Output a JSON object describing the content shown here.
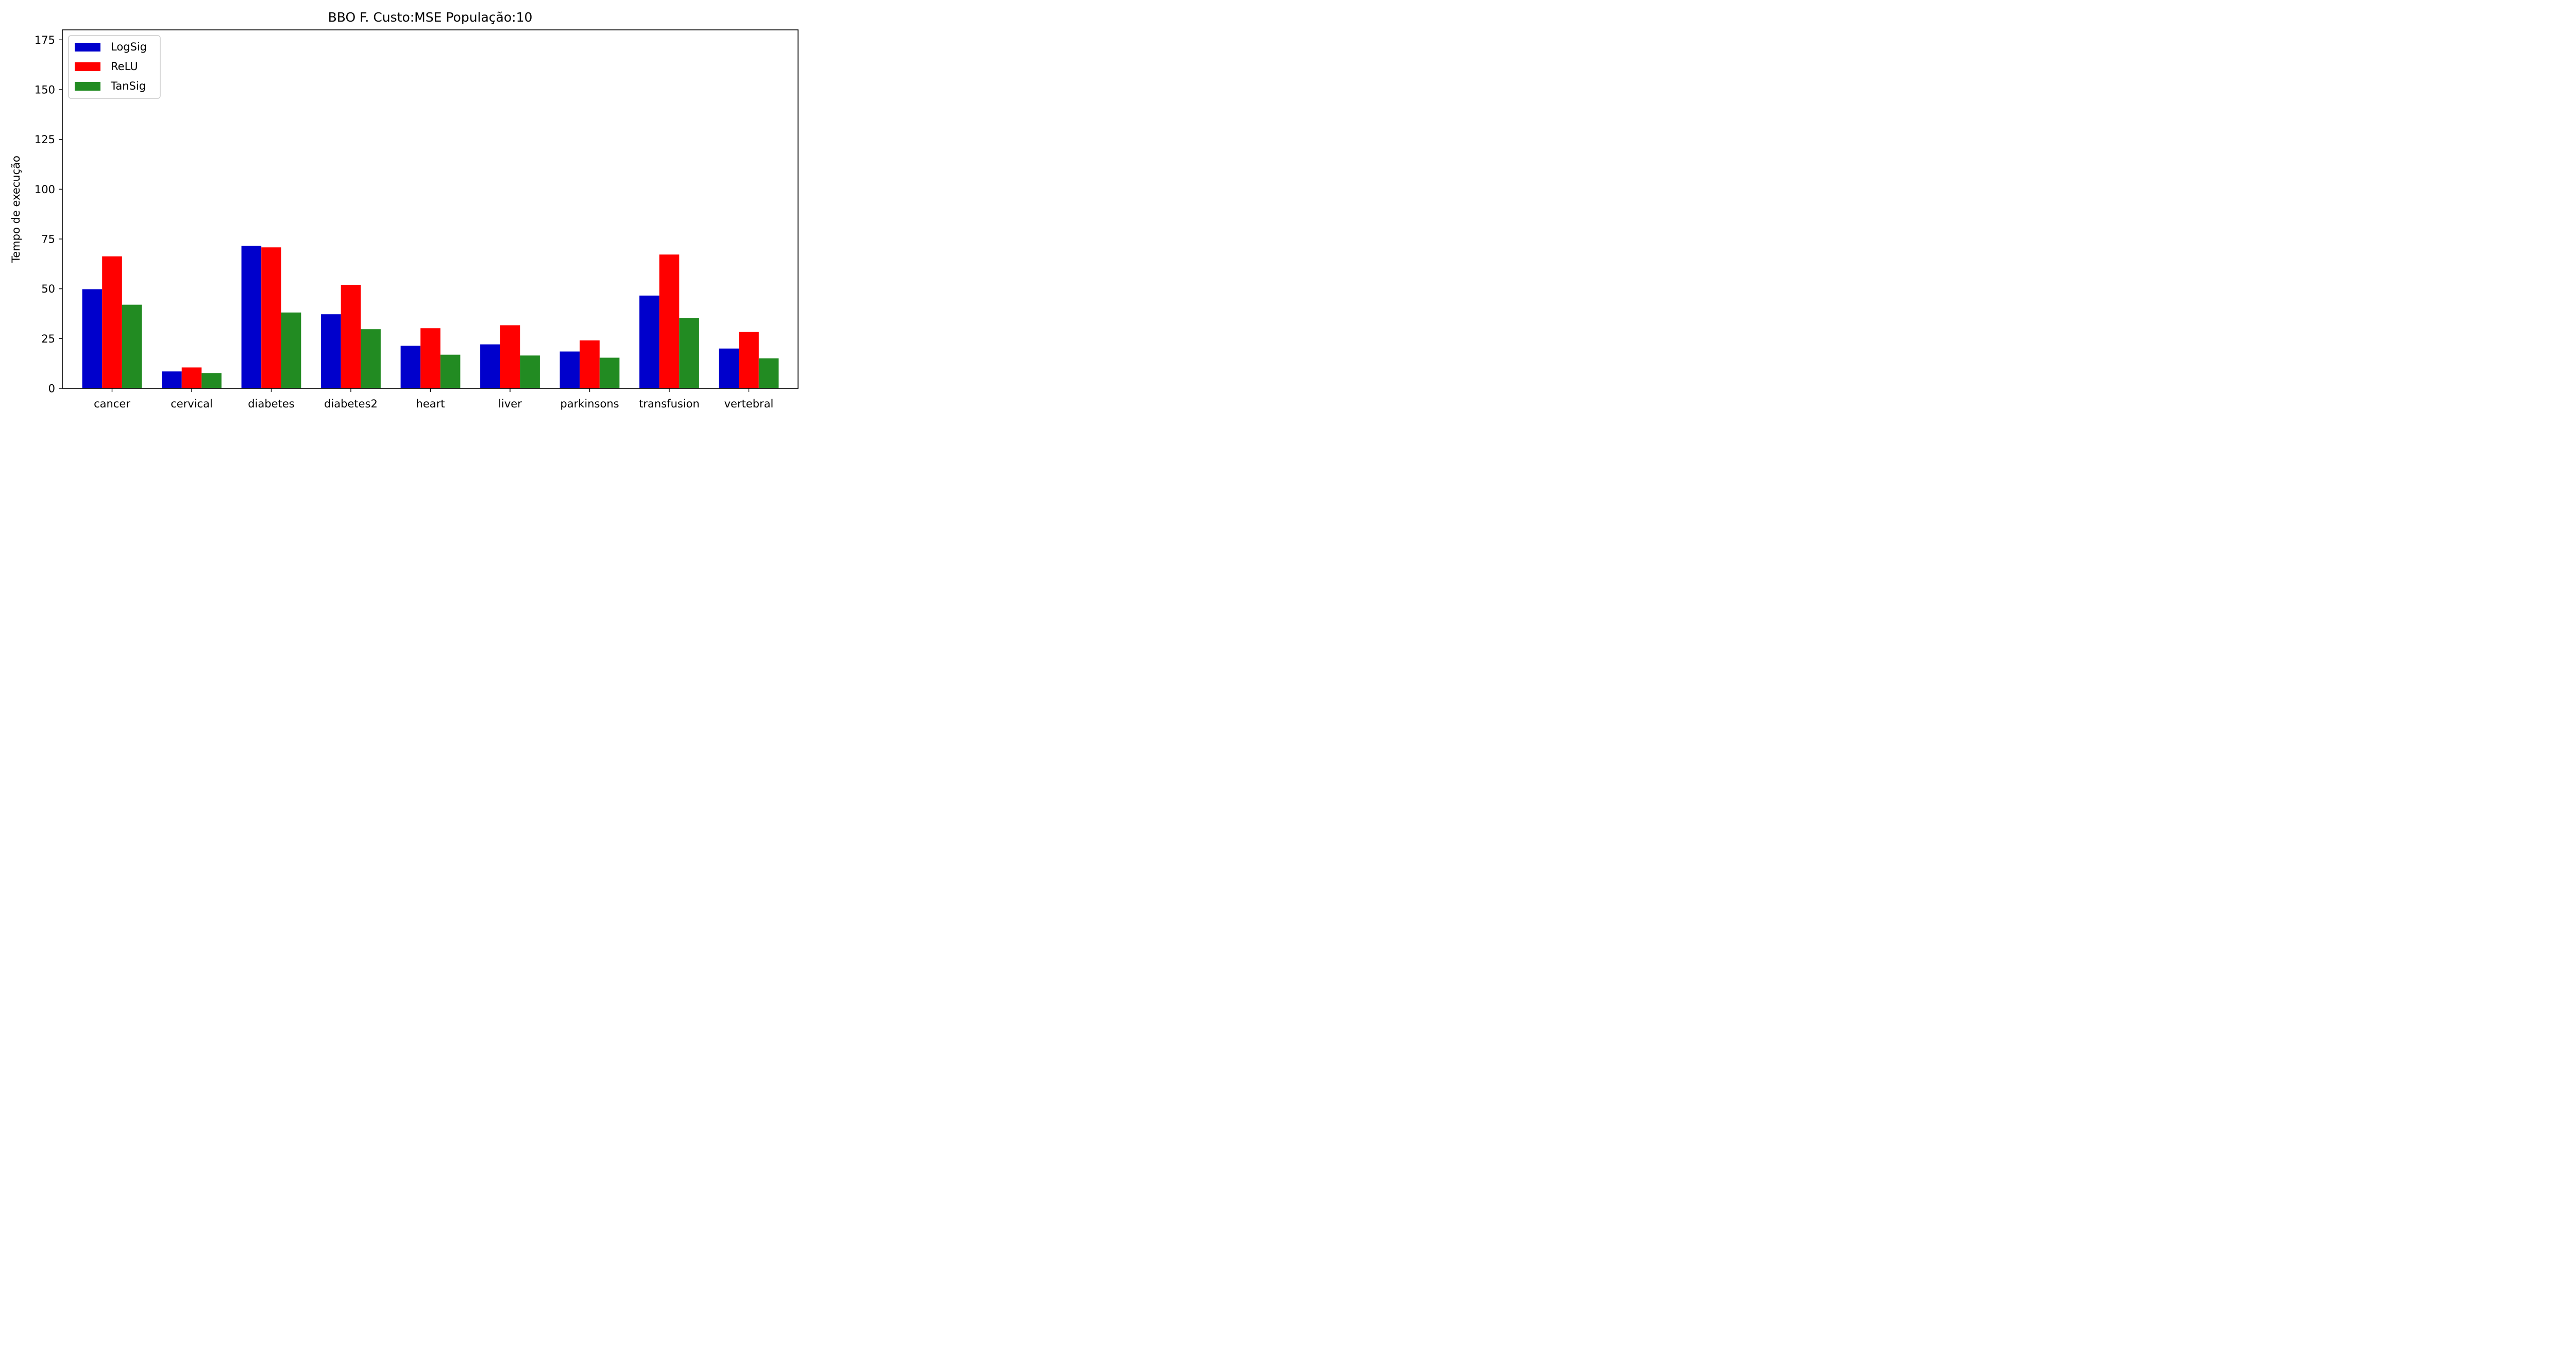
{
  "chart_data": {
    "type": "bar",
    "title": "BBO F. Custo:MSE População:10",
    "xlabel": "",
    "ylabel": "Tempo de execução",
    "ylim": [
      0,
      180
    ],
    "yticks": [
      0,
      25,
      50,
      75,
      100,
      125,
      150,
      175
    ],
    "grid": false,
    "legend_position": "top-left",
    "categories": [
      "cancer",
      "cervical",
      "diabetes",
      "diabetes2",
      "heart",
      "liver",
      "parkinsons",
      "transfusion",
      "vertebral"
    ],
    "series": [
      {
        "name": "LogSig",
        "color": "#0000cc",
        "values": [
          49.8,
          8.5,
          71.6,
          37.2,
          21.4,
          22.1,
          18.5,
          46.6,
          20.0
        ]
      },
      {
        "name": "ReLU",
        "color": "#ff0000",
        "values": [
          66.3,
          10.5,
          70.8,
          52.0,
          30.2,
          31.7,
          24.1,
          67.2,
          28.4
        ]
      },
      {
        "name": "TanSig",
        "color": "#228b22",
        "values": [
          42.0,
          7.7,
          38.1,
          29.7,
          16.9,
          16.5,
          15.4,
          35.4,
          15.1
        ]
      }
    ]
  }
}
